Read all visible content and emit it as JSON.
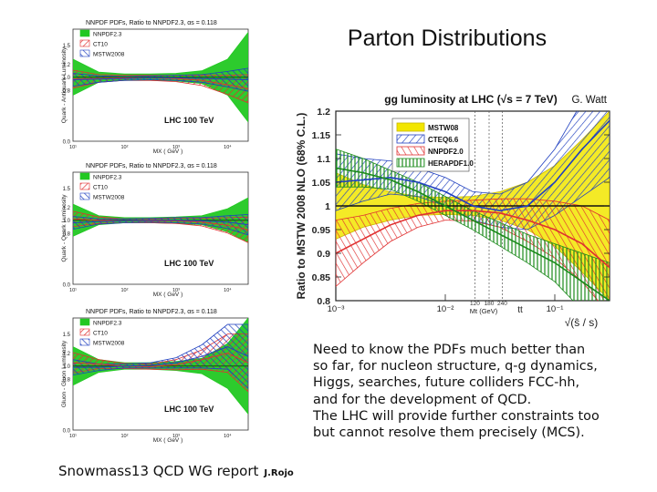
{
  "slide": {
    "title": "Parton Distributions",
    "notes": [
      "Need to know the PDFs much better than",
      "so far, for nucleon structure, q-g dynamics,",
      "Higgs, searches, future colliders FCC-hh,",
      "and for the development of QCD.",
      "The LHC will provide further constraints too",
      "but cannot resolve them precisely (MCS)."
    ],
    "footer_main": "Snowmass13 QCD WG report",
    "footer_small": "J.Rojo"
  },
  "colors": {
    "green": "#22c822",
    "red": "#e03030",
    "blue": "#2040c0",
    "yellow": "#f2e600"
  },
  "chart_data": [
    {
      "type": "area",
      "panel": "Quark-Antiquark Luminosity",
      "title": "NNPDF PDFs, Ratio to NNPDF2.3, αs = 0.118",
      "ylabel": "Quark - Antiquark Luminosity",
      "xlabel": "MX ( GeV )",
      "annotation": "LHC 100 TeV",
      "yticks": [
        "1.5",
        "1.2",
        "1.0",
        "0.8",
        "0.0"
      ],
      "xticks": [
        "10¹",
        "10²",
        "10³",
        "10⁴"
      ],
      "legend": [
        "NNPDF2.3",
        "CT10",
        "MSTW2008"
      ],
      "x": [
        1.0,
        1.5,
        2.0,
        2.5,
        3.0,
        3.5,
        4.0,
        4.4
      ],
      "series": [
        {
          "name": "NNPDF2.3",
          "center": [
            1.0,
            1.0,
            1.0,
            1.0,
            1.0,
            1.0,
            1.0,
            1.0
          ],
          "half_width": [
            0.28,
            0.08,
            0.05,
            0.05,
            0.06,
            0.1,
            0.28,
            0.7
          ]
        },
        {
          "name": "CT10",
          "center": [
            0.97,
            0.98,
            0.99,
            0.99,
            0.98,
            0.95,
            0.88,
            0.82
          ],
          "half_width": [
            0.14,
            0.06,
            0.04,
            0.04,
            0.05,
            0.08,
            0.15,
            0.22
          ]
        },
        {
          "name": "MSTW2008",
          "center": [
            0.96,
            0.97,
            0.98,
            0.99,
            0.99,
            0.98,
            0.97,
            0.96
          ],
          "half_width": [
            0.1,
            0.05,
            0.03,
            0.03,
            0.04,
            0.06,
            0.12,
            0.18
          ]
        }
      ]
    },
    {
      "type": "area",
      "panel": "Quark-Quark Luminosity",
      "title": "NNPDF PDFs, Ratio to NNPDF2.3, αs = 0.118",
      "ylabel": "Quark - Quark Luminosity",
      "xlabel": "MX ( GeV )",
      "annotation": "LHC 100 TeV",
      "yticks": [
        "1.5",
        "1.2",
        "1.0",
        "0.8",
        "0.0"
      ],
      "xticks": [
        "10¹",
        "10²",
        "10³",
        "10⁴"
      ],
      "legend": [
        "NNPDF2.3",
        "CT10",
        "MSTW2008"
      ],
      "x": [
        1.0,
        1.5,
        2.0,
        2.5,
        3.0,
        3.5,
        4.0,
        4.4
      ],
      "series": [
        {
          "name": "NNPDF2.3",
          "center": [
            1.0,
            1.0,
            1.0,
            1.0,
            1.0,
            1.0,
            1.0,
            1.0
          ],
          "half_width": [
            0.25,
            0.07,
            0.04,
            0.04,
            0.05,
            0.07,
            0.18,
            0.35
          ]
        },
        {
          "name": "CT10",
          "center": [
            1.02,
            1.0,
            0.99,
            0.99,
            0.99,
            0.97,
            0.92,
            0.85
          ],
          "half_width": [
            0.12,
            0.05,
            0.03,
            0.03,
            0.04,
            0.06,
            0.12,
            0.2
          ]
        },
        {
          "name": "MSTW2008",
          "center": [
            0.96,
            0.98,
            0.99,
            1.0,
            1.0,
            0.99,
            0.97,
            0.93
          ],
          "half_width": [
            0.1,
            0.04,
            0.03,
            0.03,
            0.04,
            0.05,
            0.1,
            0.16
          ]
        }
      ]
    },
    {
      "type": "area",
      "panel": "Gluon-Gluon Luminosity",
      "title": "NNPDF PDFs, Ratio to NNPDF2.3, αs = 0.118",
      "ylabel": "Gluon - Gluon Luminosity",
      "xlabel": "MX ( GeV )",
      "annotation": "LHC 100 TeV",
      "yticks": [
        "1.5",
        "1.2",
        "1.0",
        "0.8",
        "0.0"
      ],
      "xticks": [
        "10¹",
        "10²",
        "10³",
        "10⁴"
      ],
      "legend": [
        "NNPDF2.3",
        "CT10",
        "MSTW2008"
      ],
      "x": [
        1.0,
        1.5,
        2.0,
        2.5,
        3.0,
        3.5,
        4.0,
        4.4
      ],
      "series": [
        {
          "name": "NNPDF2.3",
          "center": [
            1.0,
            1.0,
            1.0,
            1.0,
            1.0,
            1.0,
            1.0,
            1.0
          ],
          "half_width": [
            0.3,
            0.1,
            0.05,
            0.05,
            0.07,
            0.12,
            0.35,
            0.75
          ]
        },
        {
          "name": "CT10",
          "center": [
            1.05,
            1.03,
            1.0,
            0.99,
            1.02,
            1.1,
            1.2,
            1.05
          ],
          "half_width": [
            0.16,
            0.07,
            0.04,
            0.04,
            0.08,
            0.15,
            0.3,
            0.45
          ]
        },
        {
          "name": "MSTW2008",
          "center": [
            0.98,
            0.98,
            1.0,
            1.01,
            1.05,
            1.15,
            1.3,
            1.15
          ],
          "half_width": [
            0.12,
            0.05,
            0.03,
            0.04,
            0.08,
            0.18,
            0.35,
            0.5
          ]
        }
      ]
    },
    {
      "type": "area",
      "panel": "gg luminosity",
      "title": "gg luminosity at LHC (√s = 7 TeV)",
      "author": "G. Watt",
      "ylabel": "Ratio to MSTW 2008 NLO (68% C.L.)",
      "xlabel": "√(ŝ / s)",
      "x_marker_label": "Mt (GeV)",
      "x_marker_values": [
        "120",
        "180",
        "240"
      ],
      "tt_label": "tt",
      "ylim": [
        0.8,
        1.2
      ],
      "xlim": [
        -3,
        -0.5
      ],
      "yticks": [
        "1.2",
        "1.15",
        "1.1",
        "1.05",
        "1",
        "0.95",
        "0.9",
        "0.85",
        "0.8"
      ],
      "xticks": [
        "10⁻³",
        "10⁻²",
        "10⁻¹"
      ],
      "legend": [
        "MSTW08",
        "CTEQ6.6",
        "NNPDF2.0",
        "HERAPDF1.0"
      ],
      "x": [
        -3.0,
        -2.75,
        -2.5,
        -2.25,
        -2.0,
        -1.75,
        -1.5,
        -1.25,
        -1.0,
        -0.75,
        -0.5
      ],
      "series": [
        {
          "name": "MSTW08",
          "center": [
            1.0,
            1.0,
            1.0,
            1.0,
            1.0,
            1.0,
            1.0,
            1.0,
            1.0,
            1.0,
            1.0
          ],
          "half_width": [
            0.07,
            0.045,
            0.03,
            0.02,
            0.018,
            0.02,
            0.03,
            0.05,
            0.085,
            0.14,
            0.2
          ]
        },
        {
          "name": "CTEQ6.6",
          "center": [
            1.05,
            1.055,
            1.06,
            1.05,
            1.03,
            1.0,
            0.99,
            1.0,
            1.05,
            1.12,
            1.18
          ],
          "half_width": [
            0.06,
            0.045,
            0.035,
            0.03,
            0.03,
            0.03,
            0.035,
            0.05,
            0.07,
            0.1,
            0.12
          ]
        },
        {
          "name": "NNPDF2.0",
          "center": [
            0.9,
            0.93,
            0.96,
            0.98,
            0.99,
            0.99,
            0.985,
            0.97,
            0.95,
            0.92,
            0.87
          ],
          "half_width": [
            0.07,
            0.05,
            0.035,
            0.025,
            0.02,
            0.022,
            0.03,
            0.045,
            0.06,
            0.08,
            0.1
          ]
        },
        {
          "name": "HERAPDF1.0",
          "center": [
            1.08,
            1.07,
            1.055,
            1.03,
            1.0,
            0.97,
            0.94,
            0.91,
            0.88,
            0.84,
            0.8
          ],
          "half_width": [
            0.04,
            0.03,
            0.02,
            0.02,
            0.02,
            0.02,
            0.025,
            0.03,
            0.04,
            0.06,
            0.08
          ]
        }
      ]
    }
  ]
}
